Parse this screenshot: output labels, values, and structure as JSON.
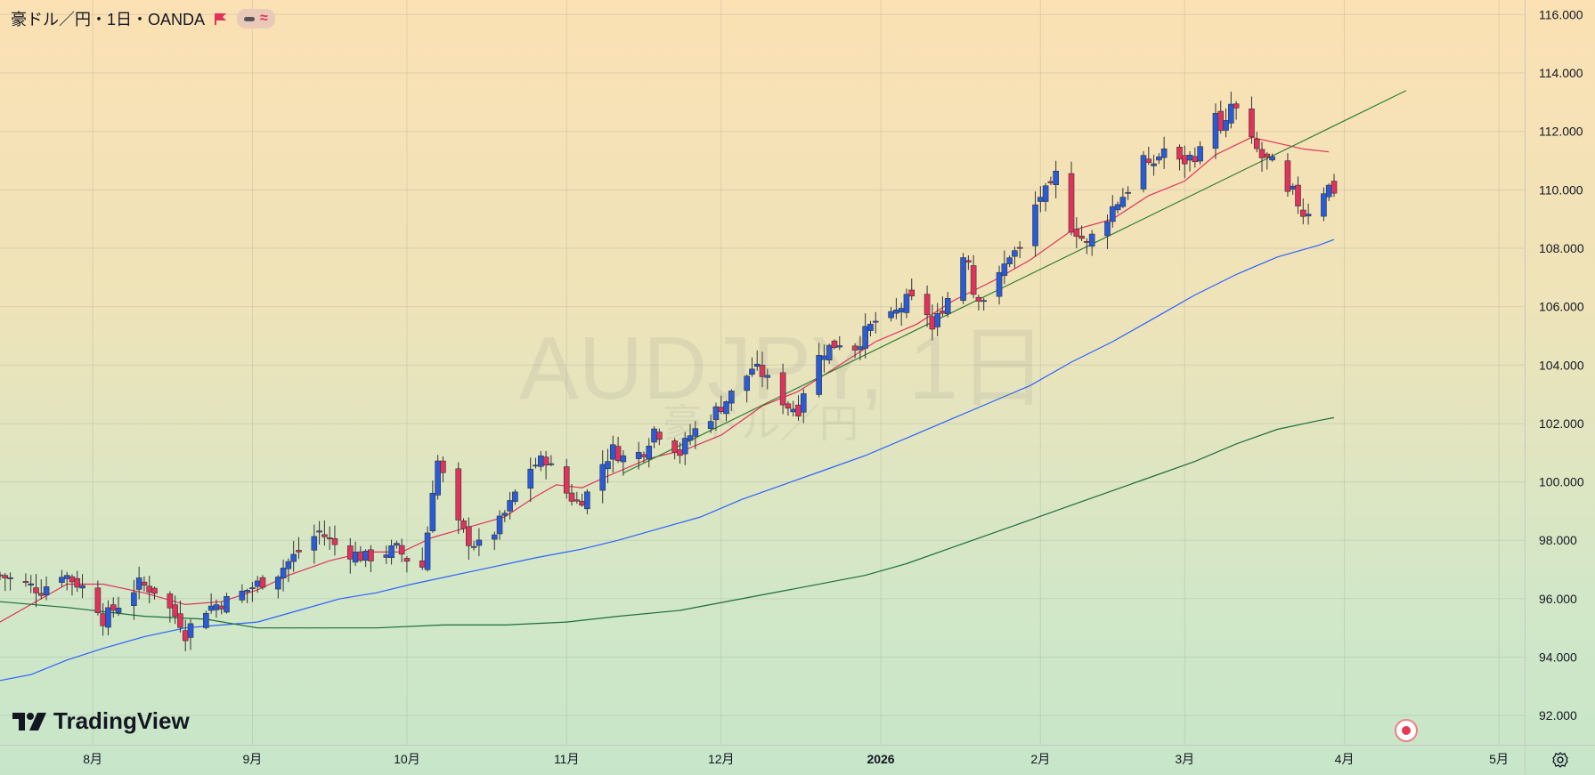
{
  "header": {
    "symbol_title": "豪ドル／円・1日・OANDA",
    "pill_wave": "≈"
  },
  "watermark": {
    "main": "AUDJPY, 1日",
    "sub": "豪ドル／円"
  },
  "logo": {
    "text": "TradingView"
  },
  "colors": {
    "up": "#2a5bd7",
    "down": "#e0335b",
    "ma_short": "#e0335b",
    "ma_mid": "#2962ff",
    "ma_long": "#1b6e3e",
    "trendline": "#2e7d32"
  },
  "chart_data": {
    "type": "candlestick",
    "instrument": "豪ドル／円",
    "timeframe": "1日",
    "source": "OANDA",
    "y_axis": {
      "min": 91.0,
      "max": 116.5,
      "ticks": [
        "116.000",
        "114.000",
        "112.000",
        "110.000",
        "108.000",
        "106.000",
        "104.000",
        "102.000",
        "100.000",
        "98.000",
        "96.000",
        "94.000",
        "92.000"
      ]
    },
    "x_axis": {
      "labels": [
        {
          "label": "8月",
          "day": 20
        },
        {
          "label": "9月",
          "day": 51
        },
        {
          "label": "10月",
          "day": 81
        },
        {
          "label": "11月",
          "day": 112
        },
        {
          "label": "12月",
          "day": 142
        },
        {
          "label": "2026",
          "day": 173
        },
        {
          "label": "2月",
          "day": 204
        },
        {
          "label": "3月",
          "day": 232
        },
        {
          "label": "4月",
          "day": 263
        },
        {
          "label": "5月",
          "day": 293
        }
      ],
      "day_min": 2,
      "day_max": 298
    },
    "close_path": [
      [
        2,
        96.8
      ],
      [
        10,
        96.3
      ],
      [
        14,
        96.9
      ],
      [
        18,
        96.4
      ],
      [
        20,
        96.1
      ],
      [
        22,
        95.3
      ],
      [
        25,
        95.8
      ],
      [
        29,
        96.5
      ],
      [
        32,
        96.3
      ],
      [
        37,
        95.2
      ],
      [
        38,
        94.8
      ],
      [
        41,
        95.6
      ],
      [
        47,
        96.0
      ],
      [
        52,
        96.5
      ],
      [
        56,
        96.9
      ],
      [
        61,
        97.8
      ],
      [
        64,
        98.3
      ],
      [
        68,
        97.7
      ],
      [
        73,
        97.4
      ],
      [
        79,
        97.7
      ],
      [
        82,
        97.2
      ],
      [
        84,
        97.1
      ],
      [
        85,
        98.3
      ],
      [
        86,
        99.8
      ],
      [
        87,
        100.7
      ],
      [
        88,
        100.2
      ],
      [
        89,
        98.0
      ],
      [
        90,
        99.2
      ],
      [
        91,
        98.5
      ],
      [
        93,
        98.0
      ],
      [
        95,
        97.8
      ],
      [
        96,
        97.3
      ],
      [
        98,
        98.3
      ],
      [
        101,
        99.2
      ],
      [
        104,
        100.4
      ],
      [
        108,
        100.8
      ],
      [
        111,
        99.8
      ],
      [
        114,
        99.3
      ],
      [
        116,
        99.6
      ],
      [
        118,
        100.4
      ],
      [
        121,
        101.1
      ],
      [
        124,
        100.7
      ],
      [
        127,
        101.1
      ],
      [
        129,
        101.8
      ],
      [
        132,
        101.4
      ],
      [
        134,
        101.0
      ],
      [
        136,
        101.6
      ],
      [
        139,
        102.1
      ],
      [
        142,
        102.6
      ],
      [
        146,
        103.4
      ],
      [
        148,
        103.9
      ],
      [
        150,
        103.7
      ],
      [
        153,
        103.0
      ],
      [
        155,
        102.6
      ],
      [
        157,
        102.5
      ],
      [
        159,
        103.8
      ],
      [
        162,
        104.5
      ],
      [
        165,
        104.8
      ],
      [
        167,
        104.4
      ],
      [
        170,
        105.1
      ],
      [
        172,
        105.5
      ],
      [
        175,
        105.6
      ],
      [
        178,
        106.2
      ],
      [
        180,
        106.2
      ],
      [
        182,
        105.8
      ],
      [
        183,
        105.2
      ],
      [
        185,
        106.0
      ],
      [
        187,
        106.6
      ],
      [
        188,
        107.8
      ],
      [
        190,
        107.7
      ],
      [
        191,
        106.5
      ],
      [
        193,
        106.3
      ],
      [
        196,
        107.0
      ],
      [
        198,
        107.8
      ],
      [
        200,
        107.9
      ],
      [
        201,
        108.3
      ],
      [
        202,
        109.1
      ],
      [
        204,
        109.8
      ],
      [
        206,
        110.0
      ],
      [
        207,
        110.5
      ],
      [
        208,
        109.6
      ],
      [
        209,
        108.9
      ],
      [
        211,
        108.6
      ],
      [
        213,
        108.1
      ],
      [
        214,
        108.4
      ],
      [
        215,
        108.7
      ],
      [
        217,
        109.1
      ],
      [
        218,
        109.4
      ],
      [
        220,
        109.8
      ],
      [
        222,
        110.3
      ],
      [
        224,
        111.1
      ],
      [
        225,
        110.7
      ],
      [
        228,
        111.4
      ],
      [
        230,
        110.8
      ],
      [
        232,
        111.0
      ],
      [
        235,
        111.3
      ],
      [
        236,
        112.5
      ],
      [
        237,
        113.5
      ],
      [
        238,
        112.8
      ],
      [
        239,
        111.9
      ],
      [
        240,
        112.2
      ],
      [
        241,
        112.9
      ],
      [
        243,
        112.5
      ],
      [
        245,
        111.6
      ],
      [
        247,
        111.1
      ],
      [
        249,
        110.9
      ],
      [
        251,
        110.3
      ],
      [
        252,
        109.8
      ],
      [
        253,
        109.9
      ],
      [
        255,
        109.2
      ],
      [
        257,
        109.4
      ],
      [
        259,
        110.0
      ],
      [
        260,
        110.1
      ],
      [
        261,
        110.0
      ]
    ],
    "trendline": {
      "start": [
        123,
        100.3
      ],
      "end": [
        275,
        113.4
      ]
    },
    "moving_averages": [
      {
        "key": "short",
        "points": [
          [
            2,
            95.2
          ],
          [
            8,
            95.8
          ],
          [
            15,
            96.5
          ],
          [
            22,
            96.5
          ],
          [
            30,
            96.2
          ],
          [
            38,
            95.8
          ],
          [
            45,
            95.9
          ],
          [
            52,
            96.3
          ],
          [
            58,
            96.8
          ],
          [
            66,
            97.3
          ],
          [
            73,
            97.6
          ],
          [
            80,
            97.6
          ],
          [
            86,
            98.1
          ],
          [
            92,
            98.4
          ],
          [
            100,
            98.8
          ],
          [
            106,
            99.5
          ],
          [
            110,
            99.9
          ],
          [
            115,
            99.8
          ],
          [
            120,
            100.2
          ],
          [
            128,
            100.8
          ],
          [
            135,
            101.1
          ],
          [
            142,
            101.6
          ],
          [
            150,
            102.6
          ],
          [
            157,
            103.1
          ],
          [
            165,
            104.0
          ],
          [
            172,
            104.8
          ],
          [
            180,
            105.4
          ],
          [
            187,
            106.2
          ],
          [
            195,
            106.9
          ],
          [
            202,
            107.6
          ],
          [
            210,
            108.6
          ],
          [
            218,
            109.0
          ],
          [
            225,
            109.8
          ],
          [
            232,
            110.3
          ],
          [
            238,
            111.2
          ],
          [
            245,
            111.8
          ],
          [
            250,
            111.6
          ],
          [
            255,
            111.4
          ],
          [
            260,
            111.3
          ]
        ]
      },
      {
        "key": "mid",
        "points": [
          [
            2,
            93.2
          ],
          [
            8,
            93.4
          ],
          [
            15,
            93.9
          ],
          [
            22,
            94.3
          ],
          [
            30,
            94.7
          ],
          [
            38,
            95.0
          ],
          [
            45,
            95.1
          ],
          [
            52,
            95.2
          ],
          [
            60,
            95.6
          ],
          [
            68,
            96.0
          ],
          [
            75,
            96.2
          ],
          [
            82,
            96.5
          ],
          [
            90,
            96.8
          ],
          [
            98,
            97.1
          ],
          [
            106,
            97.4
          ],
          [
            115,
            97.7
          ],
          [
            122,
            98.0
          ],
          [
            130,
            98.4
          ],
          [
            138,
            98.8
          ],
          [
            146,
            99.4
          ],
          [
            154,
            99.9
          ],
          [
            162,
            100.4
          ],
          [
            170,
            100.9
          ],
          [
            178,
            101.5
          ],
          [
            186,
            102.1
          ],
          [
            194,
            102.7
          ],
          [
            202,
            103.3
          ],
          [
            210,
            104.1
          ],
          [
            218,
            104.8
          ],
          [
            226,
            105.6
          ],
          [
            234,
            106.4
          ],
          [
            242,
            107.1
          ],
          [
            250,
            107.7
          ],
          [
            258,
            108.1
          ],
          [
            261,
            108.3
          ]
        ]
      },
      {
        "key": "long",
        "points": [
          [
            2,
            95.9
          ],
          [
            15,
            95.7
          ],
          [
            30,
            95.4
          ],
          [
            42,
            95.3
          ],
          [
            52,
            95.0
          ],
          [
            62,
            95.0
          ],
          [
            75,
            95.0
          ],
          [
            88,
            95.1
          ],
          [
            100,
            95.1
          ],
          [
            112,
            95.2
          ],
          [
            122,
            95.4
          ],
          [
            134,
            95.6
          ],
          [
            146,
            96.0
          ],
          [
            158,
            96.4
          ],
          [
            170,
            96.8
          ],
          [
            178,
            97.2
          ],
          [
            186,
            97.7
          ],
          [
            194,
            98.2
          ],
          [
            202,
            98.7
          ],
          [
            210,
            99.2
          ],
          [
            218,
            99.7
          ],
          [
            226,
            100.2
          ],
          [
            234,
            100.7
          ],
          [
            242,
            101.3
          ],
          [
            250,
            101.8
          ],
          [
            258,
            102.1
          ],
          [
            261,
            102.2
          ]
        ]
      }
    ]
  }
}
